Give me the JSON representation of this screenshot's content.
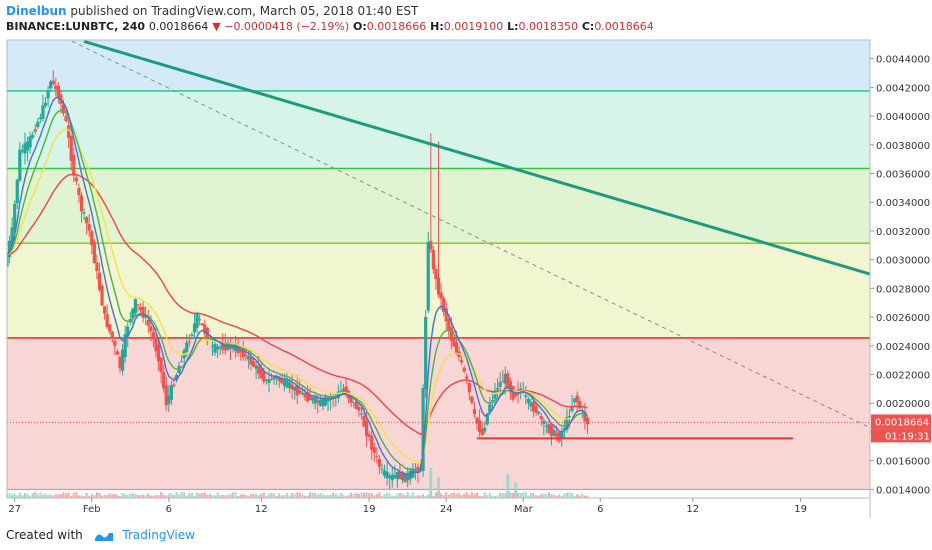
{
  "header": {
    "author": "Dinelbun",
    "published_text": "published on TradingView.com, March 05, 2018 01:40 EST",
    "symbol_interval": "BINANCE:LUNBTC, 240",
    "price": "0.0018664",
    "change": "▼ −0.0000418 (−2.19%)",
    "o_label": "O:",
    "o_value": "0.0018666",
    "h_label": "H:",
    "h_value": "0.0019100",
    "l_label": "L:",
    "l_value": "0.0018350",
    "c_label": "C:",
    "c_value": "0.0018664"
  },
  "footer": {
    "created_with": "Created with",
    "brand": "TradingView"
  },
  "colors": {
    "up": "#26a69a",
    "down": "#ef5350",
    "trendline": "#1e9a7c",
    "support": "#e53935",
    "resistance_red": "#e53935",
    "ma_red": "#ef4444",
    "ma_yellow": "#f2e24a",
    "ma_green": "#4caf50",
    "ma_blue": "#4a6fd0"
  },
  "chart_data": {
    "type": "candlestick",
    "ylim": [
      0.00134,
      0.00453
    ],
    "y_ticks": [
      "0.0014000",
      "0.0016000",
      "0.0018000",
      "0.0020000",
      "0.0022000",
      "0.0024000",
      "0.0026000",
      "0.0028000",
      "0.0030000",
      "0.0032000",
      "0.0034000",
      "0.0036000",
      "0.0038000",
      "0.0040000",
      "0.0042000",
      "0.0044000"
    ],
    "y_tick_values": [
      0.0014,
      0.0016,
      0.0018,
      0.002,
      0.0022,
      0.0024,
      0.0026,
      0.0028,
      0.003,
      0.0032,
      0.0034,
      0.0036,
      0.0038,
      0.004,
      0.0042,
      0.0044
    ],
    "x_range": [
      "2018-01-26T12:00",
      "2018-03-23T12:00"
    ],
    "x_ticks": [
      {
        "label": "27",
        "date": "2018-01-27"
      },
      {
        "label": "Feb",
        "date": "2018-02-01"
      },
      {
        "label": "6",
        "date": "2018-02-06"
      },
      {
        "label": "12",
        "date": "2018-02-12"
      },
      {
        "label": "19",
        "date": "2018-02-19"
      },
      {
        "label": "24",
        "date": "2018-02-24"
      },
      {
        "label": "Mar",
        "date": "2018-03-01"
      },
      {
        "label": "6",
        "date": "2018-03-06"
      },
      {
        "label": "12",
        "date": "2018-03-12"
      },
      {
        "label": "19",
        "date": "2018-03-19"
      }
    ],
    "current_price_label": "0.0018664",
    "countdown_label": "01:19:31",
    "current_price": 0.0018664,
    "horizontal_levels": [
      {
        "price": 0.004175,
        "color": "#2ec99a"
      },
      {
        "price": 0.003635,
        "color": "#3cbf45"
      },
      {
        "price": 0.003115,
        "color": "#8ccf2e"
      },
      {
        "price": 0.002455,
        "color": "#e53935"
      },
      {
        "price": 0.0014,
        "color": "#9e9e9e"
      }
    ],
    "zones": [
      {
        "from": 0.004175,
        "to": 0.00453,
        "color": "#d4ebf7"
      },
      {
        "from": 0.003635,
        "to": 0.004175,
        "color": "#d6f4e8"
      },
      {
        "from": 0.003115,
        "to": 0.003635,
        "color": "#e0f4d2"
      },
      {
        "from": 0.002455,
        "to": 0.003115,
        "color": "#f1f5d0"
      },
      {
        "from": 0.0014,
        "to": 0.002455,
        "color": "#f8d6d6"
      }
    ],
    "trendline": {
      "from": {
        "date": "2018-01-31T12:00",
        "price": 0.00452
      },
      "to": {
        "date": "2018-03-23T12:00",
        "price": 0.0029
      }
    },
    "dashed_line": {
      "from": {
        "date": "2018-01-26T12:00",
        "price": 0.00474
      },
      "to": {
        "date": "2018-03-23T12:00",
        "price": 0.00183
      }
    },
    "support_line": {
      "from": {
        "date": "2018-02-26T00:00",
        "price": 0.001755
      },
      "to": {
        "date": "2018-03-18T12:00",
        "price": 0.001755
      }
    },
    "price_path": [
      [
        "2018-01-26T12:00",
        0.00295
      ],
      [
        "2018-01-27T00:00",
        0.0032
      ],
      [
        "2018-01-27T12:00",
        0.00375
      ],
      [
        "2018-01-28T00:00",
        0.0038
      ],
      [
        "2018-01-28T12:00",
        0.00392
      ],
      [
        "2018-01-29T00:00",
        0.00405
      ],
      [
        "2018-01-29T12:00",
        0.00425
      ],
      [
        "2018-01-30T00:00",
        0.00415
      ],
      [
        "2018-01-30T12:00",
        0.00395
      ],
      [
        "2018-01-31T00:00",
        0.0036
      ],
      [
        "2018-01-31T12:00",
        0.00335
      ],
      [
        "2018-02-01T00:00",
        0.0032
      ],
      [
        "2018-02-01T12:00",
        0.0029
      ],
      [
        "2018-02-02T00:00",
        0.0026
      ],
      [
        "2018-02-02T12:00",
        0.00245
      ],
      [
        "2018-02-03T00:00",
        0.00225
      ],
      [
        "2018-02-03T12:00",
        0.00255
      ],
      [
        "2018-02-04T00:00",
        0.0027
      ],
      [
        "2018-02-04T12:00",
        0.00262
      ],
      [
        "2018-02-05T00:00",
        0.0025
      ],
      [
        "2018-02-05T12:00",
        0.00232
      ],
      [
        "2018-02-06T00:00",
        0.002
      ],
      [
        "2018-02-06T12:00",
        0.00215
      ],
      [
        "2018-02-07T00:00",
        0.00232
      ],
      [
        "2018-02-07T12:00",
        0.00245
      ],
      [
        "2018-02-08T00:00",
        0.0026
      ],
      [
        "2018-02-08T12:00",
        0.0025
      ],
      [
        "2018-02-09T00:00",
        0.00238
      ],
      [
        "2018-02-10T00:00",
        0.0024
      ],
      [
        "2018-02-11T00:00",
        0.00235
      ],
      [
        "2018-02-12T00:00",
        0.00222
      ],
      [
        "2018-02-12T12:00",
        0.00215
      ],
      [
        "2018-02-13T00:00",
        0.00218
      ],
      [
        "2018-02-14T00:00",
        0.00212
      ],
      [
        "2018-02-15T00:00",
        0.00205
      ],
      [
        "2018-02-16T00:00",
        0.002
      ],
      [
        "2018-02-17T00:00",
        0.00205
      ],
      [
        "2018-02-17T12:00",
        0.0021
      ],
      [
        "2018-02-18T00:00",
        0.00202
      ],
      [
        "2018-02-18T12:00",
        0.00195
      ],
      [
        "2018-02-19T00:00",
        0.0018
      ],
      [
        "2018-02-19T12:00",
        0.00165
      ],
      [
        "2018-02-20T00:00",
        0.00152
      ],
      [
        "2018-02-20T12:00",
        0.00148
      ],
      [
        "2018-02-21T00:00",
        0.0015
      ],
      [
        "2018-02-21T12:00",
        0.00148
      ],
      [
        "2018-02-22T00:00",
        0.00152
      ],
      [
        "2018-02-22T12:00",
        0.00155
      ],
      [
        "2018-02-23T00:00",
        0.00315
      ],
      [
        "2018-02-23T12:00",
        0.00285
      ],
      [
        "2018-02-24T00:00",
        0.00265
      ],
      [
        "2018-02-24T12:00",
        0.00245
      ],
      [
        "2018-02-25T00:00",
        0.00232
      ],
      [
        "2018-02-25T12:00",
        0.00215
      ],
      [
        "2018-02-26T00:00",
        0.0019
      ],
      [
        "2018-02-26T12:00",
        0.00178
      ],
      [
        "2018-02-27T00:00",
        0.002
      ],
      [
        "2018-02-27T12:00",
        0.00212
      ],
      [
        "2018-02-28T00:00",
        0.00218
      ],
      [
        "2018-02-28T12:00",
        0.00205
      ],
      [
        "2018-03-01T00:00",
        0.0021
      ],
      [
        "2018-03-01T12:00",
        0.002
      ],
      [
        "2018-03-02T00:00",
        0.00195
      ],
      [
        "2018-03-02T12:00",
        0.00185
      ],
      [
        "2018-03-03T00:00",
        0.0018
      ],
      [
        "2018-03-03T12:00",
        0.00176
      ],
      [
        "2018-03-04T00:00",
        0.00188
      ],
      [
        "2018-03-04T12:00",
        0.00205
      ],
      [
        "2018-03-05T00:00",
        0.00193
      ],
      [
        "2018-03-05T06:00",
        0.0018664
      ]
    ],
    "spikes": [
      {
        "date": "2018-01-29T12:00",
        "high": 0.00432
      },
      {
        "date": "2018-02-23T00:00",
        "high": 0.00388
      },
      {
        "date": "2018-02-23T12:00",
        "high": 0.00382
      }
    ],
    "volume_spikes": [
      {
        "date": "2018-02-23T00:00",
        "level": 1.0
      },
      {
        "date": "2018-02-23T12:00",
        "level": 0.7
      },
      {
        "date": "2018-02-28T00:00",
        "level": 0.8
      },
      {
        "date": "2018-02-28T12:00",
        "level": 0.5
      }
    ]
  }
}
